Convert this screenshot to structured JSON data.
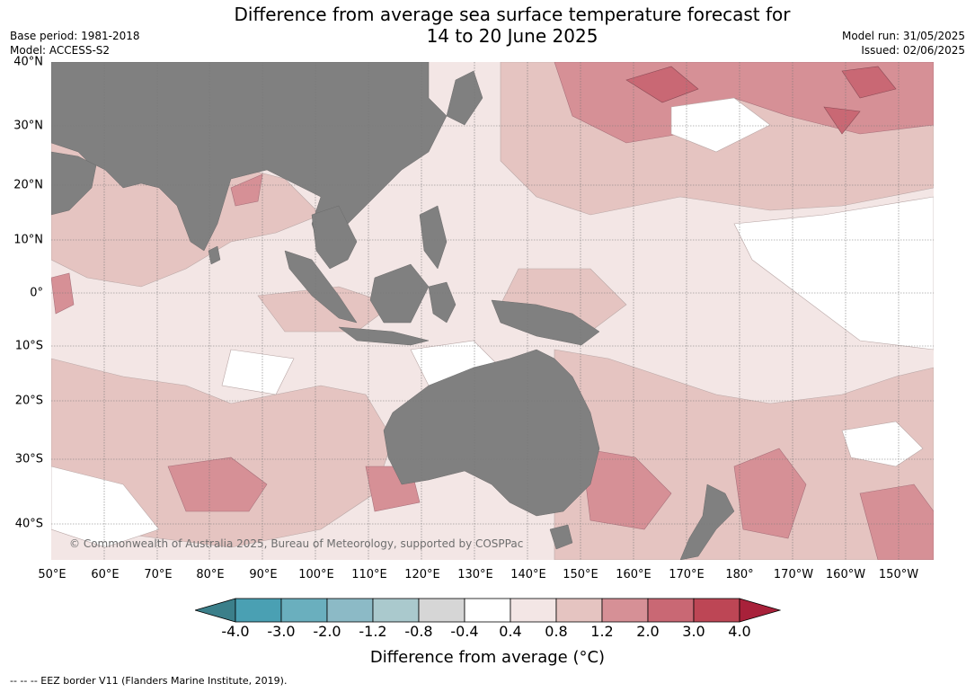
{
  "title": {
    "line1": "Difference from average sea surface temperature forecast for",
    "line2": "14 to 20 June 2025"
  },
  "meta_left": {
    "base_period": "Base period: 1981-2018",
    "model": "Model: ACCESS-S2"
  },
  "meta_right": {
    "model_run": "Model run: 31/05/2025",
    "issued": "Issued: 02/06/2025"
  },
  "map": {
    "lat_labels": [
      "40°N",
      "30°N",
      "20°N",
      "10°N",
      "0°",
      "10°S",
      "20°S",
      "30°S",
      "40°S"
    ],
    "lon_labels": [
      "50°E",
      "60°E",
      "70°E",
      "80°E",
      "90°E",
      "100°E",
      "110°E",
      "120°E",
      "130°E",
      "140°E",
      "150°E",
      "160°E",
      "170°E",
      "180°",
      "170°W",
      "160°W",
      "150°W"
    ],
    "copyright": "© Commonwealth of Australia 2025, Bureau of Meteorology, supported by COSPPac",
    "land_color": "#808080"
  },
  "colorbar": {
    "ticks": [
      "-4.0",
      "-3.0",
      "-2.0",
      "-1.2",
      "-0.8",
      "-0.4",
      "0.4",
      "0.8",
      "1.2",
      "2.0",
      "3.0",
      "4.0"
    ],
    "colors": [
      "#3b7f8a",
      "#4aa0b3",
      "#6aafbe",
      "#8cbac6",
      "#aac9cd",
      "#d6d6d6",
      "#ffffff",
      "#f3e6e5",
      "#e5c4c1",
      "#d69096",
      "#c96874",
      "#bd4655",
      "#a8213a"
    ],
    "label": "Difference from average (°C)"
  },
  "footnote": "--  --  -- EEZ border V11 (Flanders Marine Institute, 2019)."
}
